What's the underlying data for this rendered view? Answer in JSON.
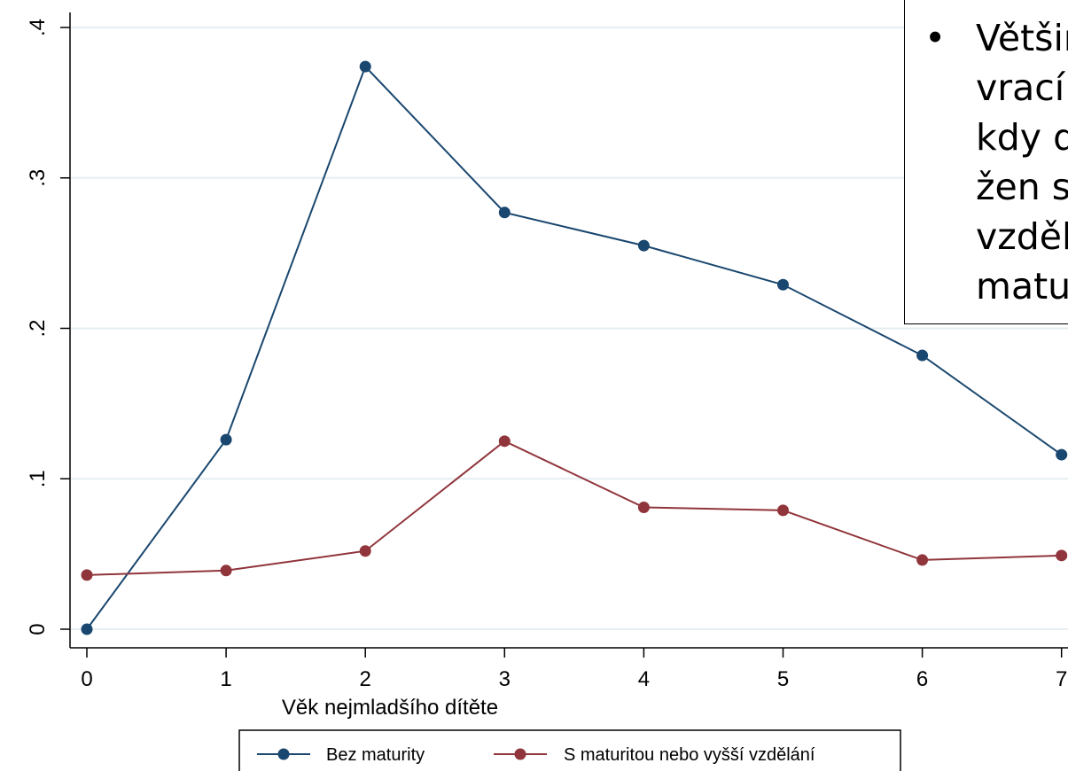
{
  "chart_data": {
    "type": "line",
    "x": [
      0,
      1,
      2,
      3,
      4,
      5,
      6,
      7
    ],
    "series": [
      {
        "name": "Bez maturity",
        "color": "#1a476f",
        "values": [
          0.0,
          0.126,
          0.374,
          0.277,
          0.255,
          0.229,
          0.182,
          0.116
        ]
      },
      {
        "name": "S maturitou nebo vyšší vzdělání",
        "color": "#90353b",
        "values": [
          0.036,
          0.039,
          0.052,
          0.125,
          0.081,
          0.079,
          0.046,
          0.049
        ]
      }
    ],
    "xlabel": "Věk nejmladšího dítěte",
    "ylabel": "",
    "xlim": [
      0,
      7
    ],
    "ylim": [
      0,
      0.4
    ],
    "x_ticks": [
      "0",
      "1",
      "2",
      "3",
      "4",
      "5",
      "6",
      "7"
    ],
    "y_ticks": [
      {
        "value": 0,
        "label": "0"
      },
      {
        "value": 0.1,
        "label": ".1"
      },
      {
        "value": 0.2,
        "label": ".2"
      },
      {
        "value": 0.3,
        "label": ".3"
      },
      {
        "value": 0.4,
        "label": ".4"
      }
    ],
    "grid": true,
    "legend_position": "bottom"
  },
  "note": {
    "bullet": "•",
    "text": "Většin\nvrací t\nkdy d\nžen s\nvzděla\nmatu"
  }
}
